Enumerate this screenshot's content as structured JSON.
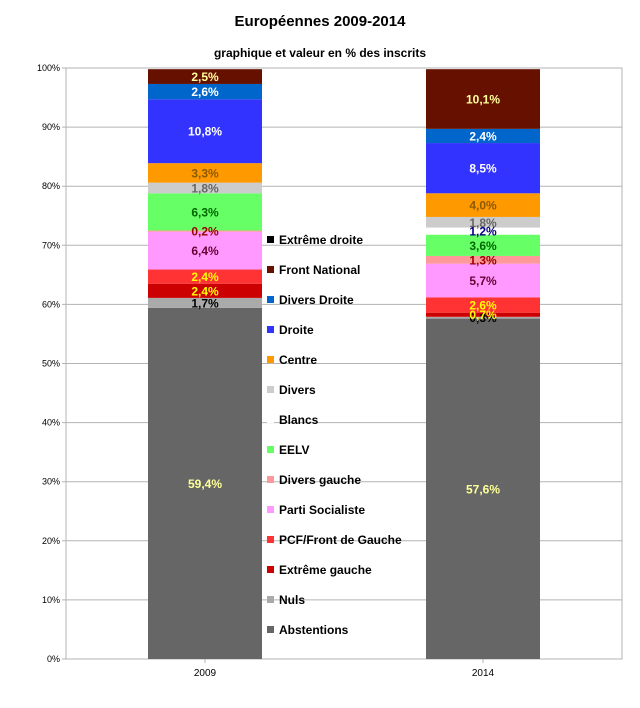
{
  "chart_data": {
    "type": "bar",
    "stacked": true,
    "title": "Européennes 2009-2014",
    "subtitle": "graphique et valeur en % des inscrits",
    "categories": [
      "2009",
      "2014"
    ],
    "ylim": [
      0,
      100
    ],
    "yticks": [
      "0%",
      "10%",
      "20%",
      "30%",
      "40%",
      "50%",
      "60%",
      "70%",
      "80%",
      "90%",
      "100%"
    ],
    "grid": true,
    "legend_position": "center",
    "legend_order": [
      "Extrême droite",
      "Front National",
      "Divers Droite",
      "Droite",
      "Centre",
      "Divers",
      "Blancs",
      "EELV",
      "Divers gauche",
      "Parti Socialiste",
      "PCF/Front de Gauche",
      "Extrême gauche",
      "Nuls",
      "Abstentions"
    ],
    "series": [
      {
        "name": "Abstentions",
        "color": "#666666",
        "label_color": "#ffff99",
        "values": [
          59.4,
          57.6
        ],
        "labels": [
          "59,4%",
          "57,6%"
        ]
      },
      {
        "name": "Nuls",
        "color": "#aaaaaa",
        "label_color": "#000000",
        "values": [
          1.7,
          0.3
        ],
        "labels": [
          "1,7%",
          "0,3%"
        ]
      },
      {
        "name": "Extrême gauche",
        "color": "#cc0000",
        "label_color": "#ffff00",
        "values": [
          2.4,
          0.7
        ],
        "labels": [
          "2,4%",
          "0,7%"
        ]
      },
      {
        "name": "PCF/Front de Gauche",
        "color": "#ff3333",
        "label_color": "#ffff00",
        "values": [
          2.4,
          2.6
        ],
        "labels": [
          "2,4%",
          "2,6%"
        ]
      },
      {
        "name": "Parti Socialiste",
        "color": "#ff99ff",
        "label_color": "#660033",
        "values": [
          6.4,
          5.7
        ],
        "labels": [
          "6,4%",
          "5,7%"
        ]
      },
      {
        "name": "Divers gauche",
        "color": "#ff9999",
        "label_color": "#990000",
        "values": [
          0.2,
          1.3
        ],
        "labels": [
          "0,2%",
          "1,3%"
        ]
      },
      {
        "name": "EELV",
        "color": "#66ff66",
        "label_color": "#006600",
        "values": [
          6.3,
          3.6
        ],
        "labels": [
          "6,3%",
          "3,6%"
        ]
      },
      {
        "name": "Blancs",
        "color": "#ffffff",
        "label_color": "#000080",
        "values": [
          0,
          1.2
        ],
        "labels": [
          "",
          "1,2%"
        ]
      },
      {
        "name": "Divers",
        "color": "#cccccc",
        "label_color": "#666666",
        "values": [
          1.8,
          1.8
        ],
        "labels": [
          "1,8%",
          "1,8%"
        ]
      },
      {
        "name": "Centre",
        "color": "#ff9900",
        "label_color": "#8b5a00",
        "values": [
          3.3,
          4.0
        ],
        "labels": [
          "3,3%",
          "4,0%"
        ]
      },
      {
        "name": "Droite",
        "color": "#3333ff",
        "label_color": "#ffffff",
        "values": [
          10.8,
          8.5
        ],
        "labels": [
          "10,8%",
          "8,5%"
        ]
      },
      {
        "name": "Divers Droite",
        "color": "#0066cc",
        "label_color": "#ffffff",
        "values": [
          2.6,
          2.4
        ],
        "labels": [
          "2,6%",
          "2,4%"
        ]
      },
      {
        "name": "Front National",
        "color": "#661100",
        "label_color": "#ffff99",
        "values": [
          2.5,
          10.1
        ],
        "labels": [
          "2,5%",
          "10,1%"
        ]
      },
      {
        "name": "Extrême droite",
        "color": "#000000",
        "label_color": "#ffffff",
        "values": [
          0,
          0
        ],
        "labels": [
          "",
          ""
        ]
      }
    ]
  }
}
